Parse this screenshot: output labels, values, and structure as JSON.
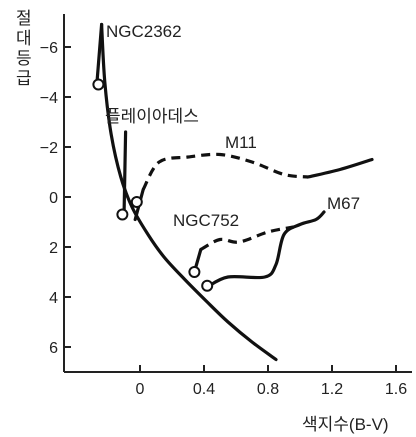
{
  "chart_data": {
    "type": "line",
    "xlabel": "색지수(B-V)",
    "ylabel": "절대 등급",
    "x_ticks": [
      "0",
      "0.4",
      "0.8",
      "1.2",
      "1.6"
    ],
    "y_ticks": [
      "-6",
      "-4",
      "-2",
      "0",
      "2",
      "4",
      "6"
    ],
    "xlim": [
      -0.45,
      1.7
    ],
    "ylim": [
      7,
      -7
    ],
    "y_inverted": true,
    "grid": false,
    "main_sequence": {
      "x": [
        -0.24,
        -0.22,
        -0.18,
        -0.12,
        -0.05,
        0.05,
        0.15,
        0.28,
        0.42,
        0.55,
        0.7,
        0.85
      ],
      "y": [
        -6.9,
        -4.6,
        -2.5,
        -0.8,
        0.4,
        1.5,
        2.4,
        3.3,
        4.2,
        5.0,
        5.8,
        6.5
      ]
    },
    "clusters": [
      {
        "name": "NGC2362",
        "x": [
          -0.24,
          -0.27
        ],
        "y": [
          -6.9,
          -4.5
        ],
        "turnoff": {
          "x": -0.26,
          "y": -4.5
        }
      },
      {
        "name": "플레이아데스",
        "x": [
          -0.09,
          -0.1
        ],
        "y": [
          -2.6,
          0.8
        ],
        "turnoff": {
          "x": -0.11,
          "y": 0.7
        }
      },
      {
        "name": "M11",
        "x": [
          -0.03,
          0.02,
          0.12,
          0.3,
          0.5,
          0.7,
          0.9,
          1.05,
          1.25,
          1.45
        ],
        "y": [
          0.9,
          -0.3,
          -1.4,
          -1.6,
          -1.7,
          -1.4,
          -0.9,
          -0.8,
          -1.1,
          -1.5
        ],
        "turnoff": {
          "x": -0.02,
          "y": 0.2
        }
      },
      {
        "name": "NGC752",
        "x": [
          0.34,
          0.38,
          0.5,
          0.62,
          0.8,
          0.96
        ],
        "y": [
          3.0,
          2.1,
          1.7,
          1.8,
          1.4,
          1.2
        ],
        "turnoff": {
          "x": 0.34,
          "y": 3.0
        }
      },
      {
        "name": "M67",
        "x": [
          0.42,
          0.55,
          0.78,
          0.85,
          0.9,
          1.0,
          1.1,
          1.15
        ],
        "y": [
          3.6,
          3.2,
          3.2,
          2.7,
          1.5,
          1.1,
          0.9,
          0.6
        ],
        "turnoff": {
          "x": 0.42,
          "y": 3.55
        }
      }
    ]
  }
}
